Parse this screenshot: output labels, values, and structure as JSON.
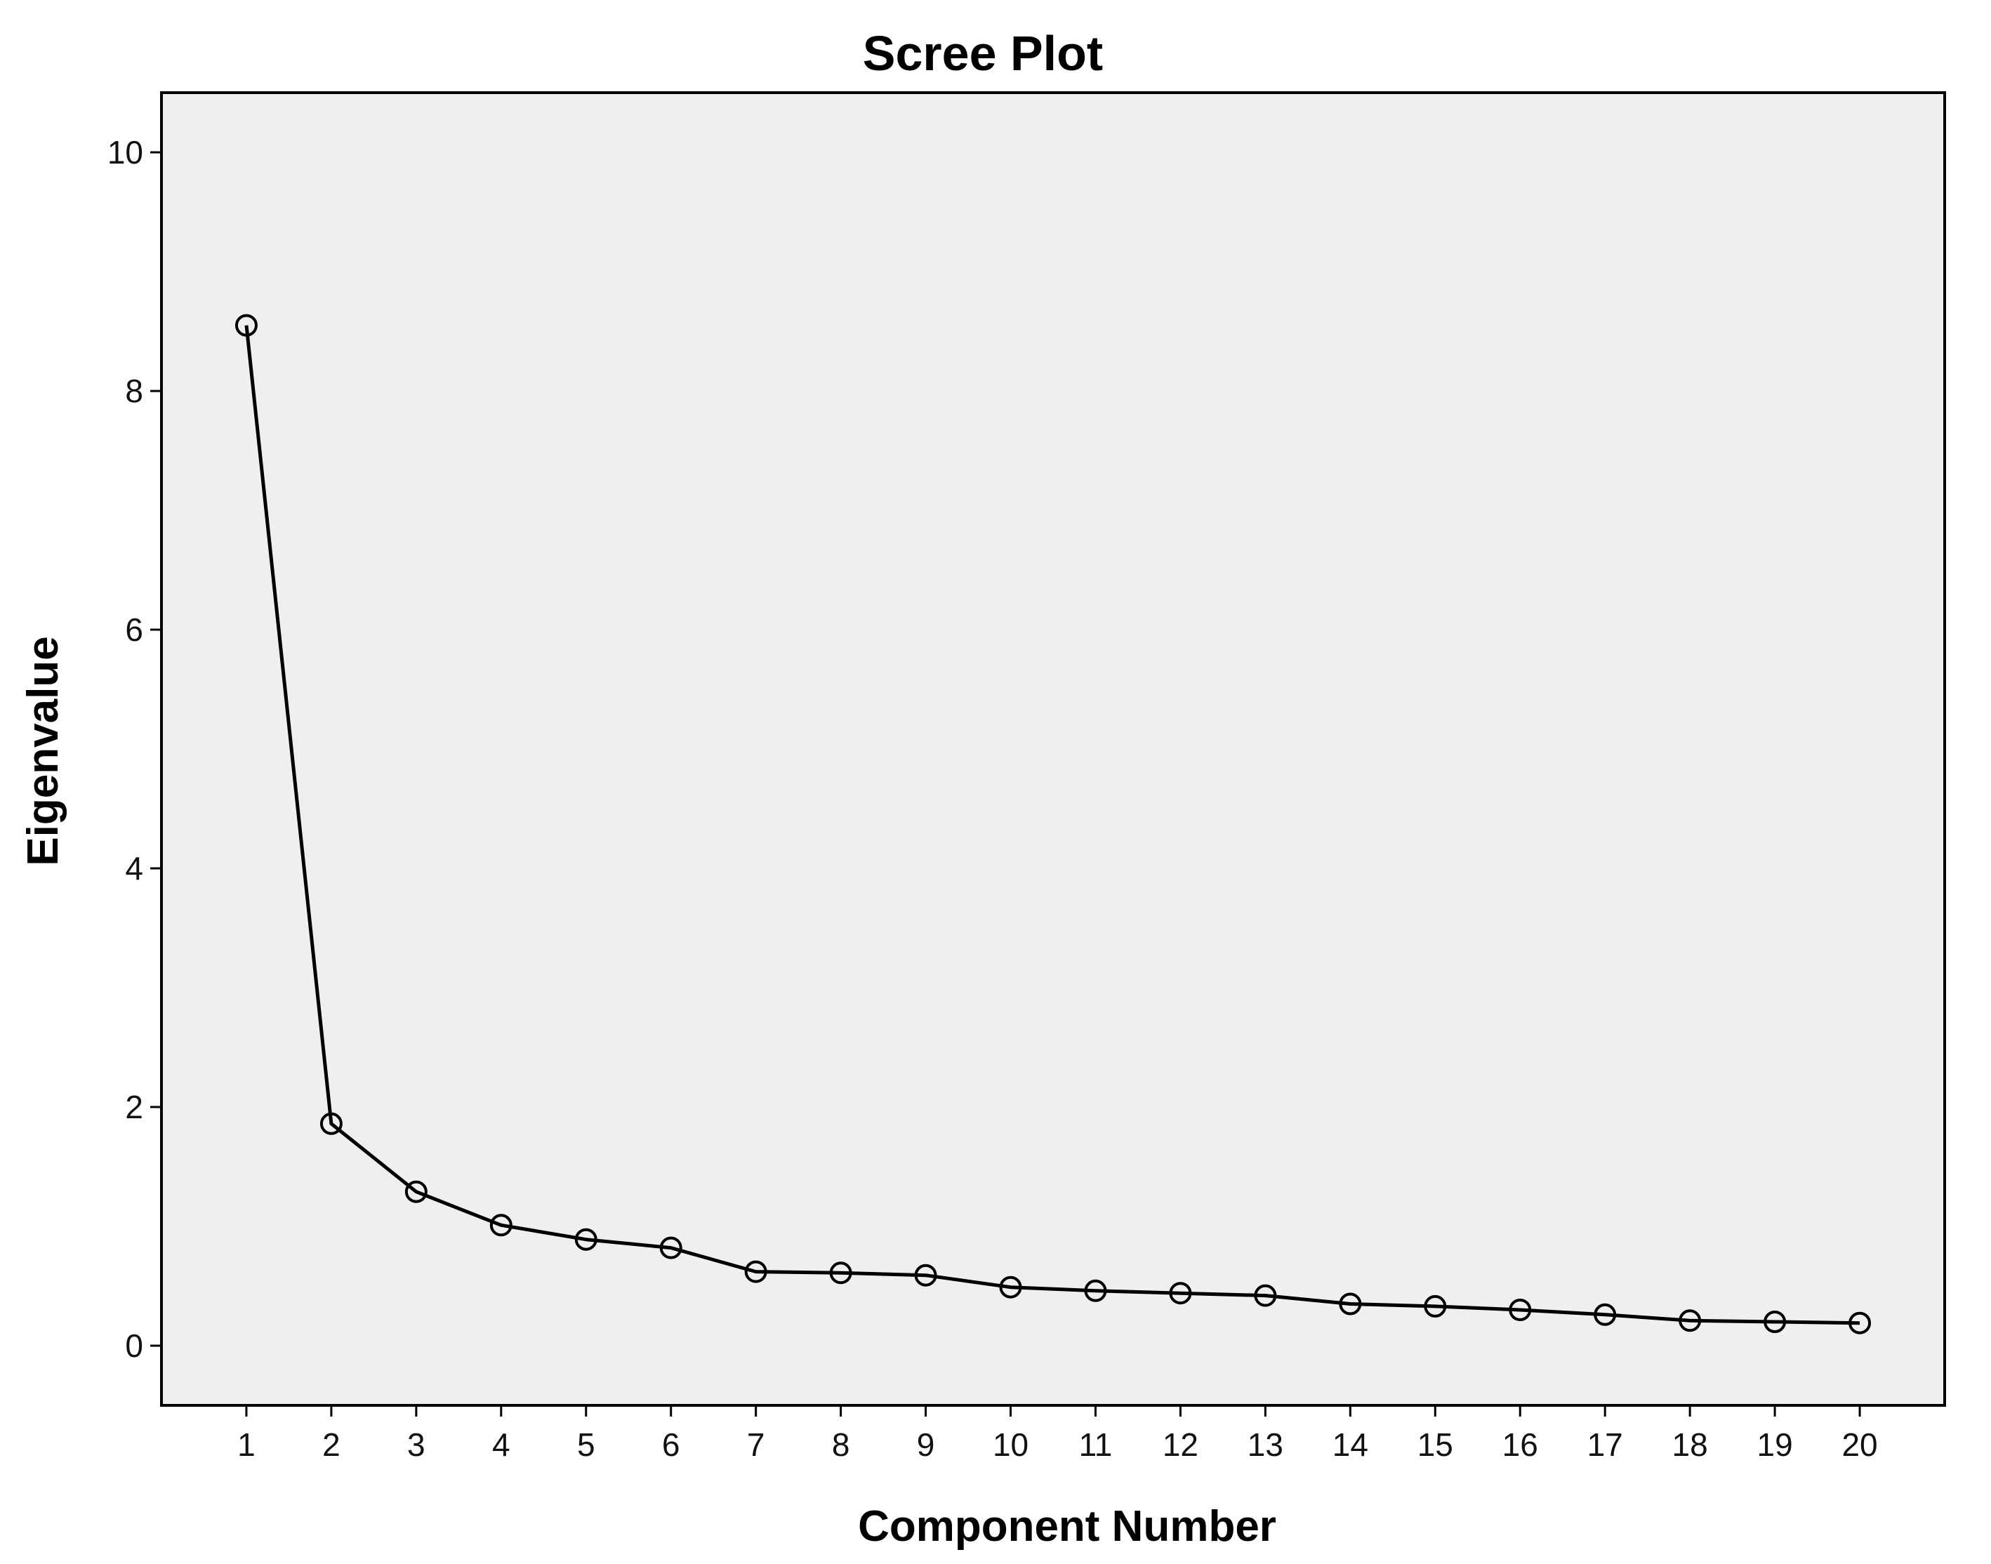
{
  "chart_data": {
    "type": "line",
    "title": "Scree Plot",
    "xlabel": "Component Number",
    "ylabel": "Eigenvalue",
    "x": [
      1,
      2,
      3,
      4,
      5,
      6,
      7,
      8,
      9,
      10,
      11,
      12,
      13,
      14,
      15,
      16,
      17,
      18,
      19,
      20
    ],
    "values": [
      8.55,
      1.86,
      1.29,
      1.01,
      0.89,
      0.82,
      0.62,
      0.61,
      0.59,
      0.49,
      0.46,
      0.44,
      0.42,
      0.35,
      0.33,
      0.3,
      0.26,
      0.21,
      0.2,
      0.19
    ],
    "ylim": [
      -0.5,
      10.5
    ],
    "xlim": [
      0,
      21
    ],
    "yticks": [
      0,
      2,
      4,
      6,
      8,
      10
    ],
    "xticks": [
      1,
      2,
      3,
      4,
      5,
      6,
      7,
      8,
      9,
      10,
      11,
      12,
      13,
      14,
      15,
      16,
      17,
      18,
      19,
      20
    ],
    "marker": "open-circle",
    "grid": false,
    "legend": "none",
    "colors": {
      "background": "#efefef",
      "line": "#000000"
    }
  }
}
